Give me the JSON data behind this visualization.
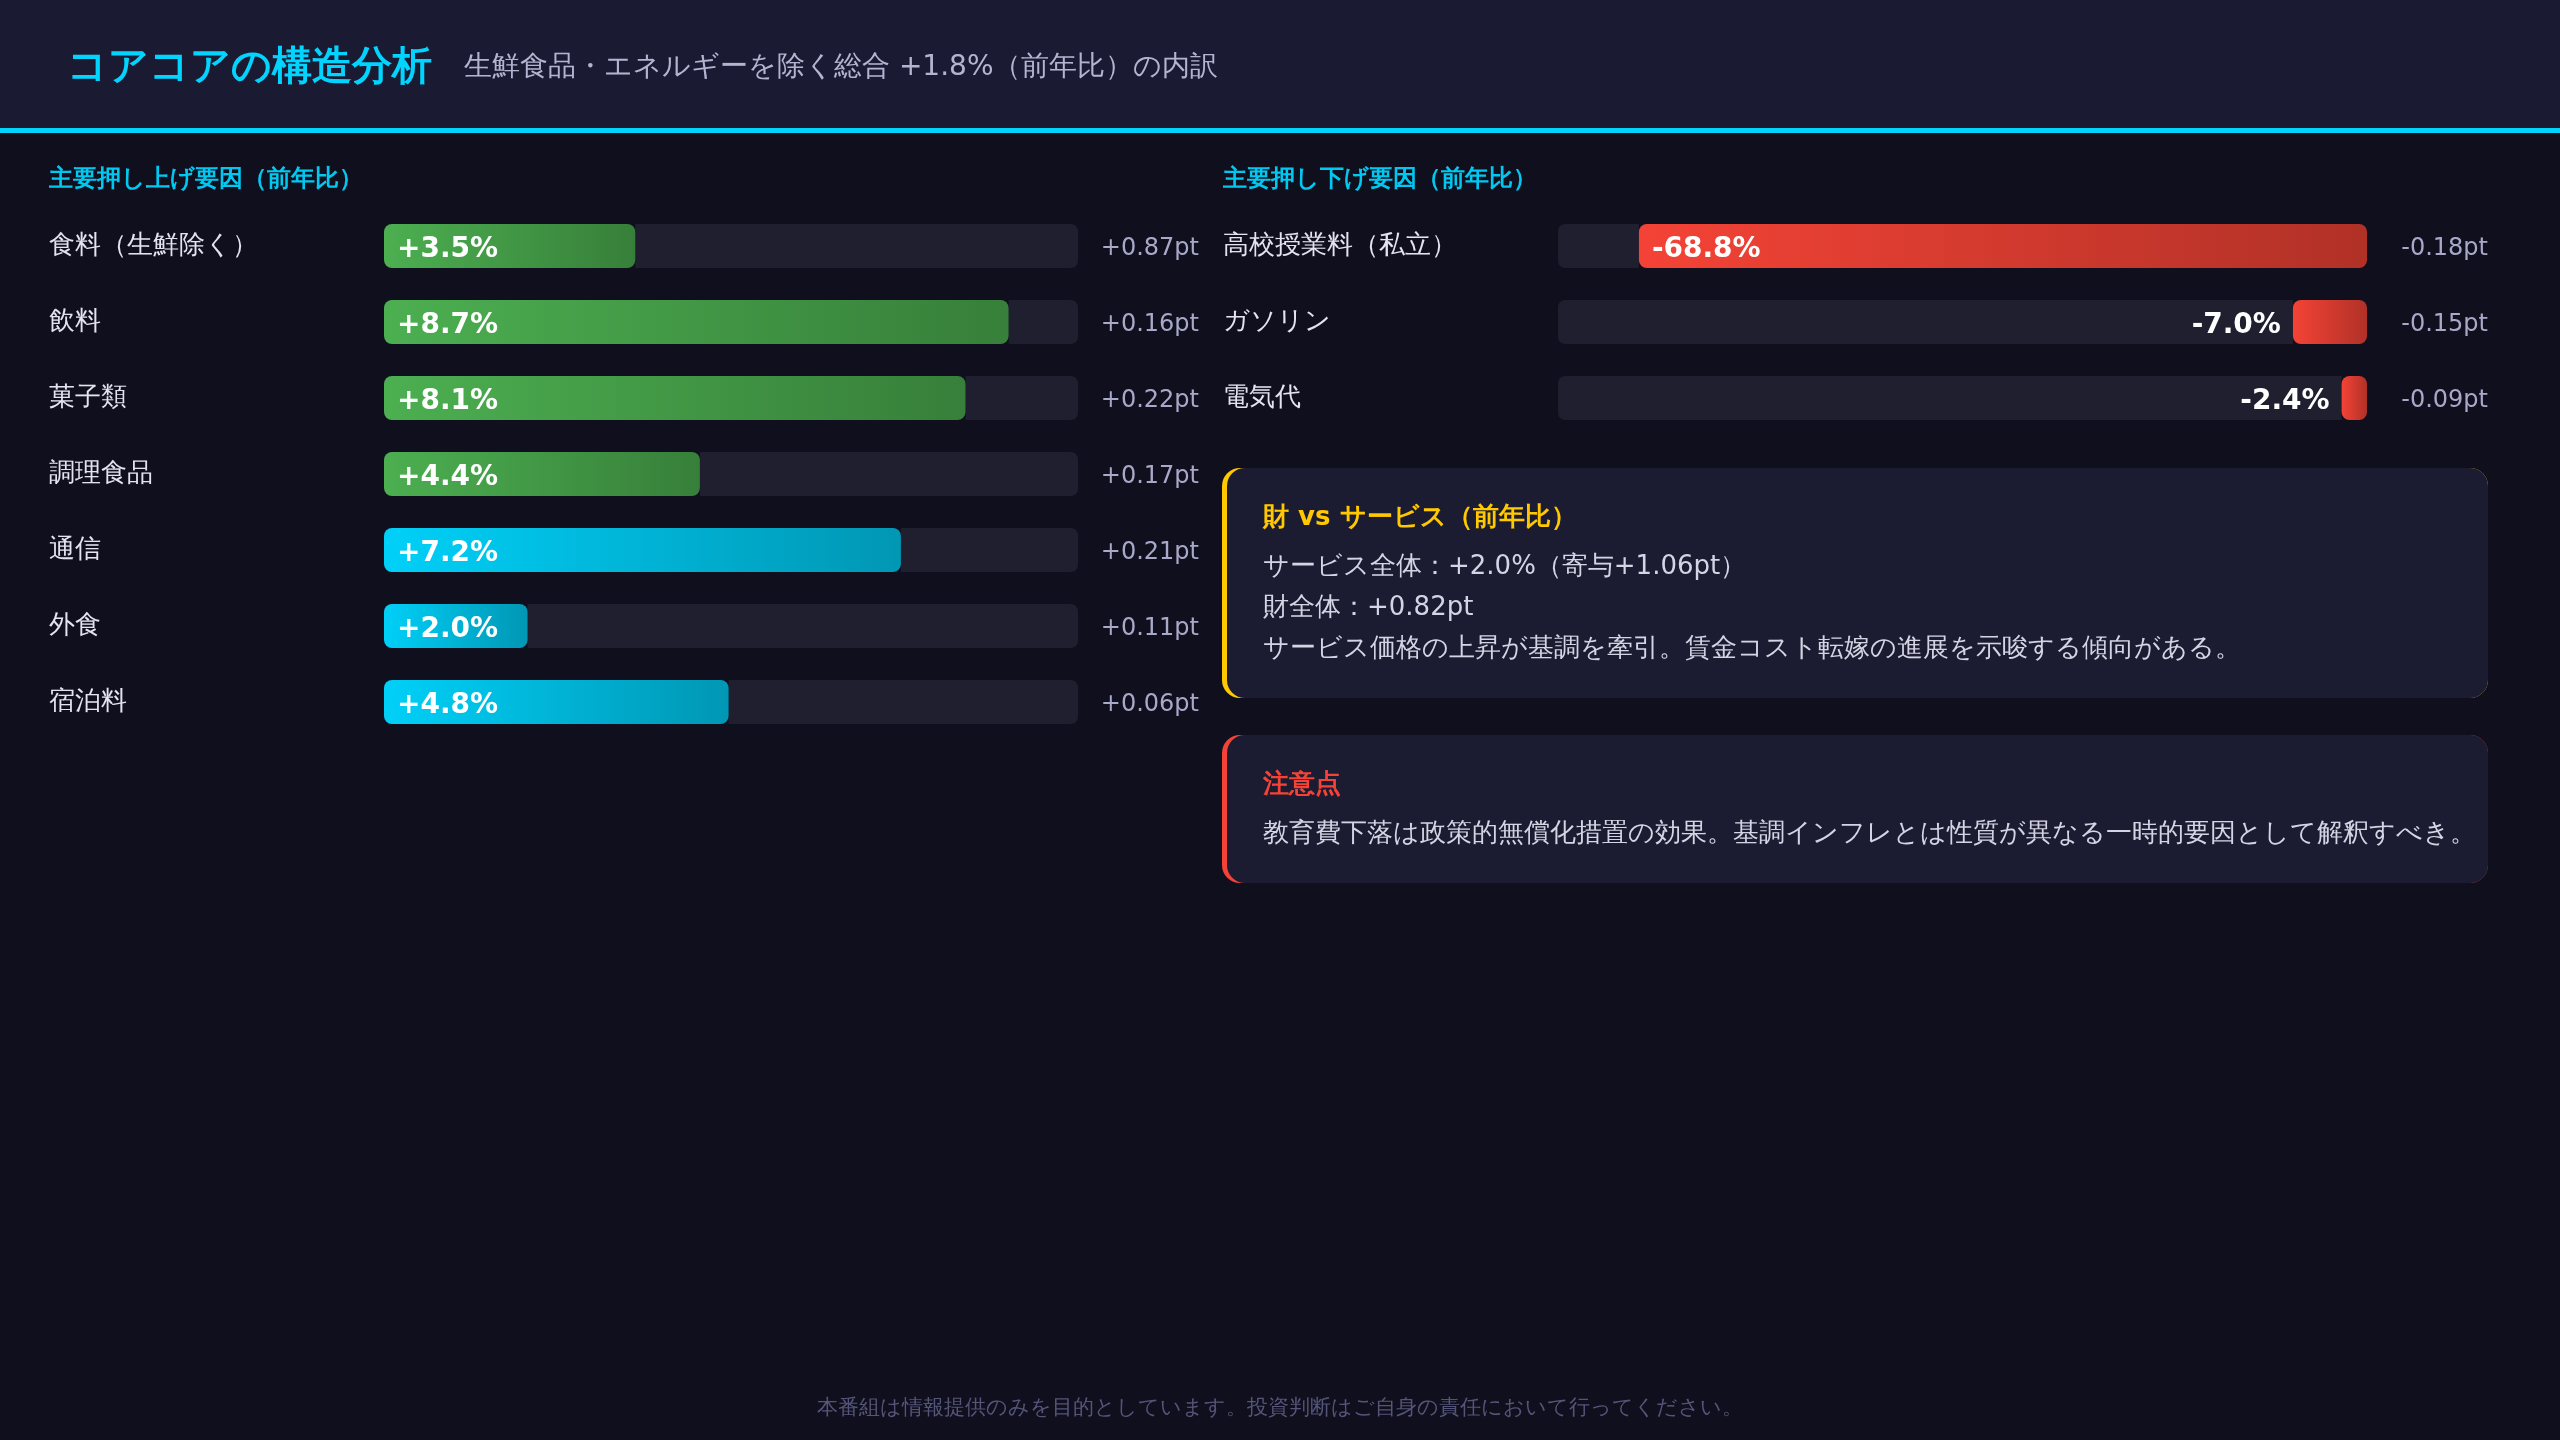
{
  "chart_data": [
    {
      "type": "other",
      "title": "コアコアの構造分析",
      "subtitle": "生鮮食品・エネルギーを除く総合 +1.8%（前年比）の内訳",
      "annotations": [
        "本番組は情報提供のみを目的としています。投資判断はご自身の責任において行ってください。"
      ]
    },
    {
      "type": "bar",
      "orientation": "horizontal",
      "title": "主要押し上げ要因（前年比）",
      "categories": [
        "食料（生鮮除く）",
        "飲料",
        "菓子類",
        "調理食品",
        "通信",
        "外食",
        "宿泊料"
      ],
      "values": [
        3.5,
        8.7,
        8.1,
        4.4,
        7.2,
        2.0,
        4.8
      ],
      "colors": [
        "#4caf50",
        "#4caf50",
        "#4caf50",
        "#4caf50",
        "#00d0f8",
        "#00d0f8",
        "#00d0f8"
      ],
      "value_labels": [
        "+3.5%",
        "+8.7%",
        "+8.1%",
        "+4.4%",
        "+7.2%",
        "+2.0%",
        "+4.8%"
      ],
      "annotations": [
        "+0.87pt",
        "+0.16pt",
        "+0.22pt",
        "+0.17pt",
        "+0.21pt",
        "+0.11pt",
        "+0.06pt"
      ]
    },
    {
      "type": "bar",
      "orientation": "horizontal",
      "title": "主要押し下げ要因（前年比）",
      "categories": [
        "高校授業料（私立）",
        "ガソリン",
        "電気代"
      ],
      "values": [
        -68.8,
        -7.0,
        -2.4
      ],
      "color": "#f44336",
      "value_labels": [
        "-68.8%",
        "-7.0%",
        "-2.4%"
      ],
      "annotations": [
        "-0.18pt",
        "-0.15pt",
        "-0.09pt"
      ]
    },
    {
      "type": "other",
      "title": "財 vs サービス（前年比）",
      "color": "#ffc800",
      "annotations": [
        "サービス全体：+2.0%（寄与+1.06pt）",
        "財全体：+0.82pt",
        "サービス価格の上昇が基調を牽引。賃金コスト転嫁の進展を示唆する傾向がある。"
      ]
    },
    {
      "type": "other",
      "title": "注意点",
      "color": "#f44336",
      "annotations": [
        "教育費下落は政策的無償化措置の効果。基調インフレとは性質が異なる一時的要因として解釈すべき。"
      ]
    }
  ]
}
